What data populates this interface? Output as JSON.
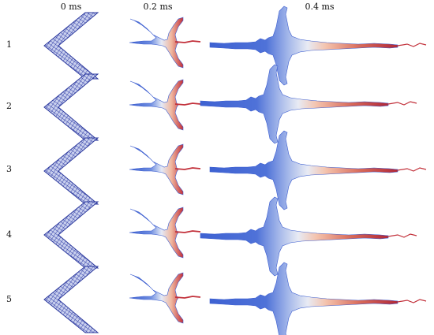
{
  "columns": {
    "t0": "0 ms",
    "t1": "0.2 ms",
    "t2": "0.4 ms"
  },
  "rows": [
    "1",
    "2",
    "3",
    "4",
    "5"
  ],
  "colors": {
    "cold": "#3f63cf",
    "mid": "#dde3f2",
    "hot": "#b0283a",
    "mesh": "#3440a8",
    "meshLight": "#c9d0ee"
  }
}
